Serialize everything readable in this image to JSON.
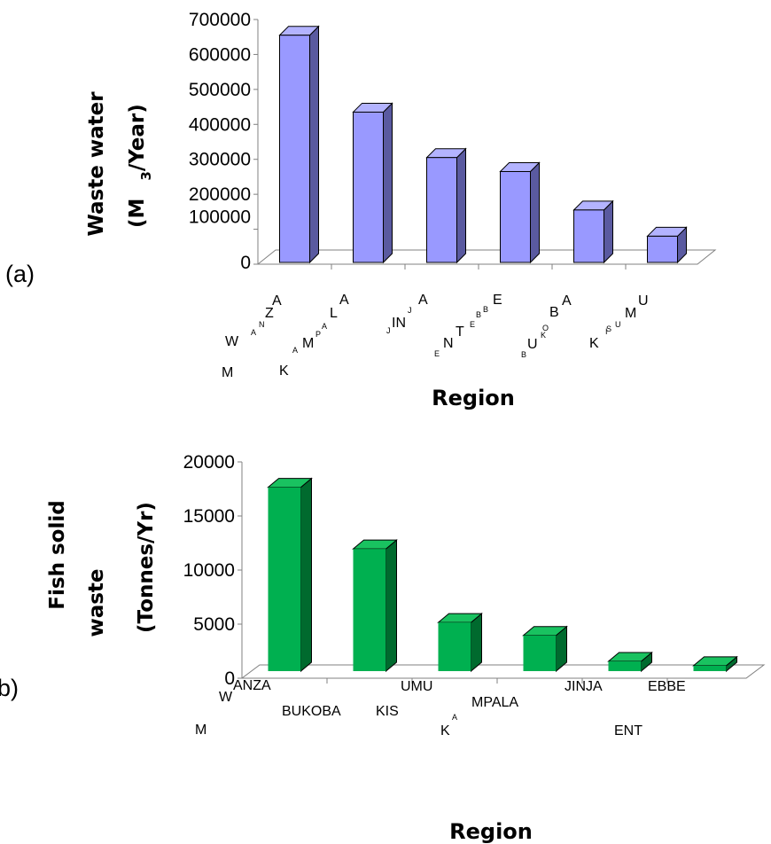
{
  "colors": {
    "bar_a_front": "#9999ff",
    "bar_a_top": "#b3b3ff",
    "bar_a_side": "#5a5aa0",
    "bar_b_front": "#00b050",
    "bar_b_top": "#19c260",
    "bar_b_side": "#006a2e"
  },
  "chart_data": [
    {
      "type": "bar",
      "panel_label": "(a)",
      "title": "",
      "ylabel": {
        "line1": "Waste water",
        "line2": "(M",
        "line2_sup": "3",
        "line2_rest": "/Year)"
      },
      "xlabel": "Region",
      "ylim": [
        0,
        700000
      ],
      "yticks": [
        "700000",
        "600000",
        "500000",
        "400000",
        "300000",
        "200000",
        "100000",
        "0"
      ],
      "categories": [
        "MWANZA",
        "KAMPALA",
        "JINJA",
        "ENTEBBE",
        "BUKOBA",
        "KISUMU"
      ],
      "values": [
        650000,
        430000,
        300000,
        260000,
        150000,
        75000
      ]
    },
    {
      "type": "bar",
      "panel_label": "b)",
      "title": "",
      "ylabel": {
        "line1": "Fish solid",
        "line2": "waste",
        "line3": "(Tonnes/Yr)"
      },
      "xlabel": "Region",
      "ylim": [
        0,
        20000
      ],
      "yticks": [
        "20000",
        "15000",
        "10000",
        "5000",
        "0"
      ],
      "categories": [
        "MWANZA",
        "BUKOBA",
        "KISUMU",
        "KAMPALA",
        "JINJA",
        "ENTEBBE"
      ],
      "values": [
        17000,
        11300,
        4500,
        3300,
        900,
        500
      ]
    }
  ],
  "cat_fragments_a": [
    [
      "M",
      "W",
      "A",
      "N",
      "Z",
      "A"
    ],
    [
      "K",
      "A",
      "M",
      "P",
      "A",
      "L",
      "A"
    ],
    [
      "J",
      "IN",
      "J",
      "A"
    ],
    [
      "E",
      "N",
      "T",
      "E",
      "B",
      "B",
      "E"
    ],
    [
      "B",
      "U",
      "K",
      "O",
      "B",
      "A"
    ],
    [
      "K",
      "I",
      "S",
      "U",
      "M",
      "U"
    ]
  ],
  "cat_fragments_b": [
    "M",
    "W",
    "ANZA",
    "BUKOBA",
    "KIS",
    "UMU",
    "K",
    "A",
    "MPALA",
    "JINJA",
    "ENT",
    "EBBE"
  ]
}
